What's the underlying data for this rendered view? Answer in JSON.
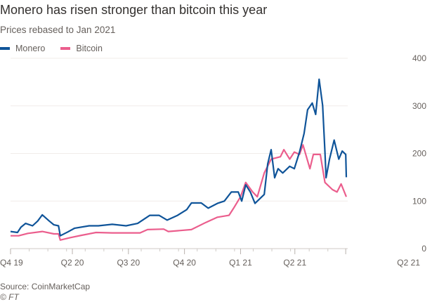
{
  "title": "Monero has risen stronger than bitcoin this year",
  "subtitle": "Prices rebased to Jan 2021",
  "source": "Source: CoinMarketCap",
  "copyright": "© FT",
  "chart_data": {
    "type": "line",
    "title": "Monero has risen stronger than bitcoin this year",
    "subtitle": "Prices rebased to Jan 2021",
    "xlabel": "",
    "ylabel": "",
    "x_unit": "days since start of Q4 2019 (approx.)",
    "ylim": [
      0,
      400
    ],
    "xlim": [
      0,
      581
    ],
    "yticks": [
      0,
      100,
      200,
      300,
      400
    ],
    "xticks": [
      {
        "x": 0,
        "label": "Q4 19"
      },
      {
        "x": 107,
        "label": "Q2 20"
      },
      {
        "x": 204,
        "label": "Q3 20"
      },
      {
        "x": 301,
        "label": "Q4 20"
      },
      {
        "x": 398,
        "label": "Q1 21"
      },
      {
        "x": 492,
        "label": "Q2 21"
      },
      {
        "x": 580,
        "label": "Q2 21"
      }
    ],
    "grid": true,
    "legend": "top-left",
    "series": [
      {
        "name": "Monero",
        "color": "#0f5499",
        "x": [
          0,
          12,
          18,
          26,
          38,
          47,
          55,
          67,
          75,
          83,
          86,
          99,
          111,
          136,
          152,
          176,
          200,
          220,
          241,
          257,
          271,
          289,
          305,
          313,
          330,
          342,
          358,
          370,
          382,
          394,
          400,
          407,
          415,
          423,
          439,
          445,
          451,
          457,
          463,
          471,
          483,
          491,
          500,
          508,
          514,
          522,
          528,
          534,
          540,
          544,
          546,
          552,
          560,
          568,
          574,
          580,
          581
        ],
        "values": [
          36,
          34,
          45,
          53,
          48,
          58,
          71,
          58,
          50,
          48,
          27,
          35,
          43,
          48,
          48,
          51,
          48,
          53,
          70,
          70,
          60,
          70,
          82,
          96,
          96,
          85,
          95,
          100,
          119,
          119,
          100,
          134,
          119,
          95,
          114,
          178,
          208,
          149,
          168,
          159,
          173,
          168,
          203,
          242,
          292,
          306,
          282,
          356,
          301,
          203,
          149,
          188,
          228,
          188,
          205,
          198,
          150
        ]
      },
      {
        "name": "Bitcoin",
        "color": "#eb5e8d",
        "x": [
          0,
          14,
          30,
          55,
          75,
          83,
          86,
          103,
          123,
          148,
          176,
          224,
          237,
          265,
          273,
          313,
          338,
          358,
          378,
          386,
          398,
          407,
          419,
          427,
          439,
          451,
          467,
          473,
          483,
          491,
          500,
          506,
          518,
          524,
          536,
          544,
          557,
          565,
          572,
          581
        ],
        "values": [
          27,
          27,
          32,
          36,
          31,
          31,
          18,
          23,
          28,
          34,
          33,
          33,
          40,
          41,
          36,
          40,
          55,
          66,
          70,
          85,
          109,
          139,
          119,
          109,
          159,
          188,
          193,
          208,
          188,
          203,
          198,
          218,
          168,
          198,
          198,
          139,
          124,
          119,
          136,
          109
        ]
      }
    ]
  }
}
